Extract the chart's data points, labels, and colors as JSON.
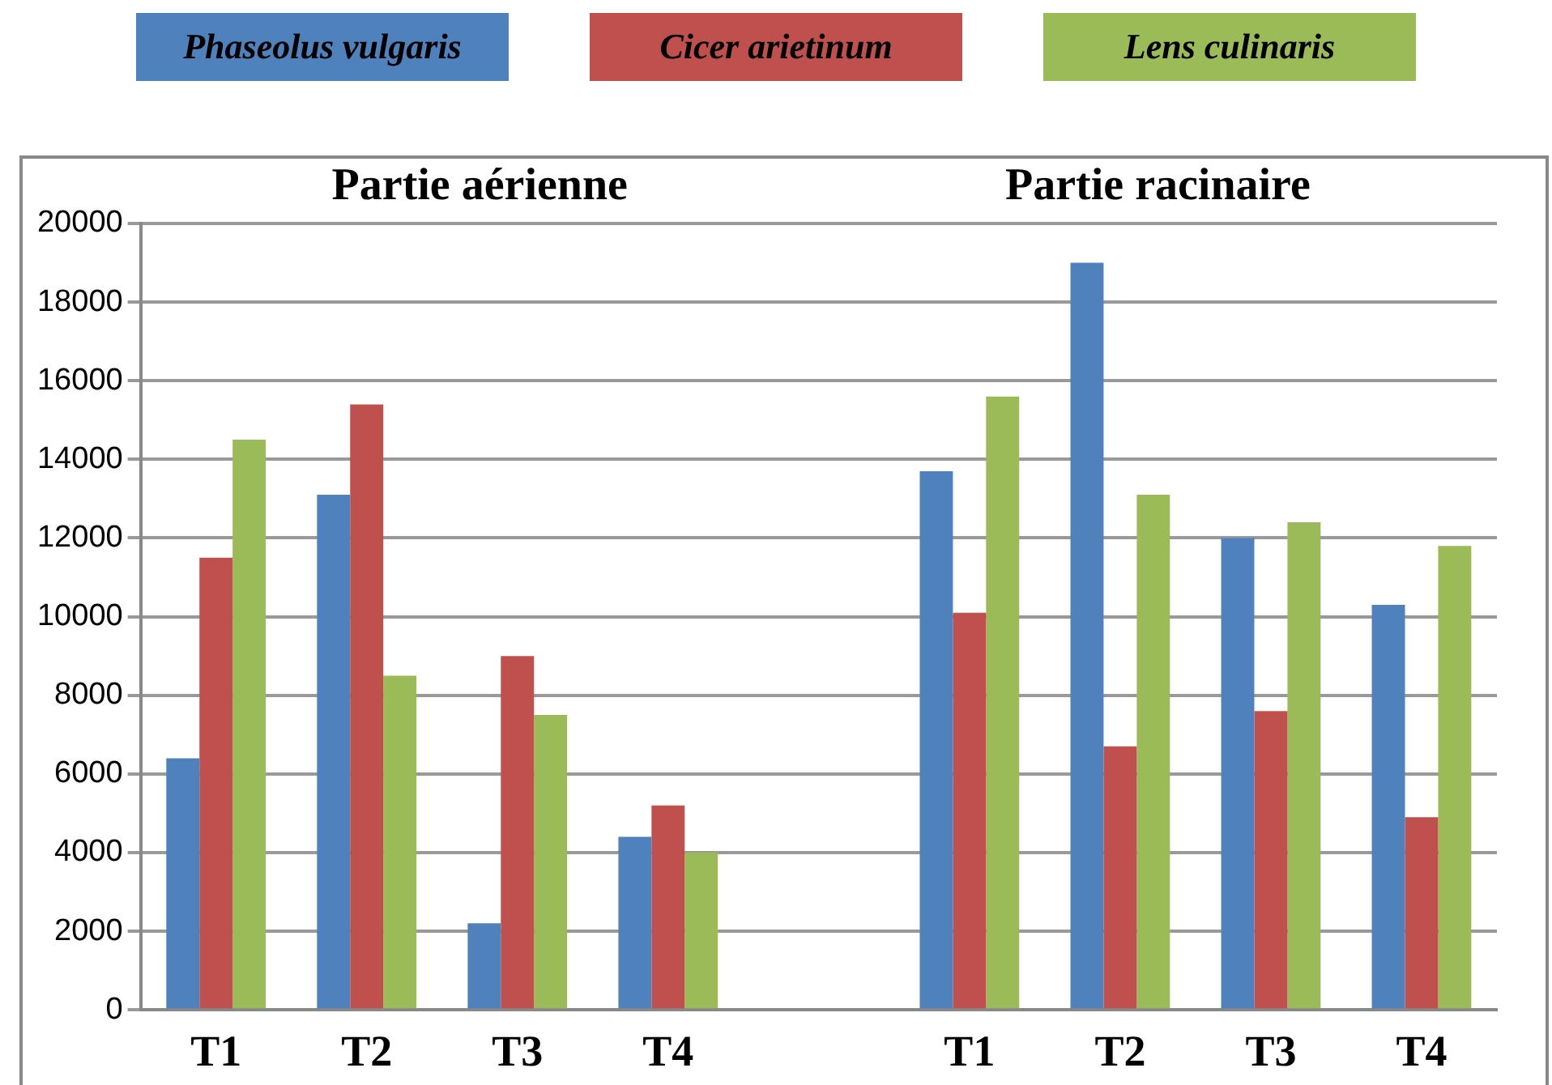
{
  "chart_data": {
    "type": "bar",
    "categories": [
      "T1",
      "T2",
      "T3",
      "T4",
      null,
      "T1",
      "T2",
      "T3",
      "T4"
    ],
    "series": [
      {
        "name": "Phaseolus vulgaris",
        "color": "#4f81bd",
        "values": [
          6400,
          13100,
          2200,
          4400,
          null,
          13700,
          19000,
          12000,
          10300
        ]
      },
      {
        "name": "Cicer arietinum",
        "color": "#c0504d",
        "values": [
          11500,
          15400,
          9000,
          5200,
          null,
          10100,
          6700,
          7600,
          4900
        ]
      },
      {
        "name": "Lens culinaris",
        "color": "#9bbb59",
        "values": [
          14500,
          8500,
          7500,
          4000,
          null,
          15600,
          13100,
          12400,
          11800
        ]
      }
    ],
    "annotations": [
      "Partie aérienne",
      "Partie racinaire"
    ],
    "ylim": [
      0,
      20000
    ],
    "yticks": [
      0,
      2000,
      4000,
      6000,
      8000,
      10000,
      12000,
      14000,
      16000,
      18000,
      20000
    ],
    "grid": "y",
    "legend": "top"
  }
}
